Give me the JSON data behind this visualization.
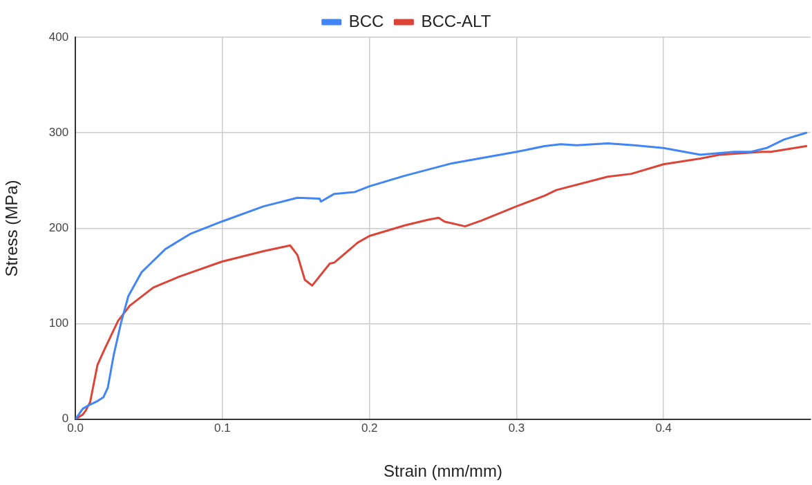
{
  "chart_data": {
    "type": "line",
    "xlabel": "Strain (mm/mm)",
    "ylabel": "Stress (MPa)",
    "xlim": [
      0,
      0.5
    ],
    "ylim": [
      0,
      400
    ],
    "xticks": [
      {
        "value": 0,
        "label": "0.0"
      },
      0.1,
      0.2,
      0.3,
      0.4
    ],
    "yticks": [
      0,
      100,
      200,
      300,
      400
    ],
    "grid": true,
    "legend": "top",
    "marker": "none",
    "line_style": "solid",
    "series": [
      {
        "name": "BCC",
        "color": "#4285f4",
        "x": [
          0,
          0.005,
          0.0095,
          0.015,
          0.019,
          0.022,
          0.026,
          0.031,
          0.036,
          0.045,
          0.061,
          0.078,
          0.0995,
          0.128,
          0.151,
          0.166,
          0.167,
          0.176,
          0.19,
          0.2,
          0.224,
          0.256,
          0.3,
          0.319,
          0.33,
          0.341,
          0.362,
          0.38,
          0.4,
          0.425,
          0.448,
          0.459,
          0.47,
          0.482,
          0.497
        ],
        "values": [
          0,
          11,
          15,
          19,
          23,
          33,
          67,
          101,
          129,
          154,
          178,
          194,
          207,
          223,
          232,
          231,
          228,
          236,
          238,
          244,
          255,
          268,
          280,
          286,
          288,
          287,
          289,
          287,
          284,
          277,
          280,
          280,
          284,
          293,
          300
        ]
      },
      {
        "name": "BCC-ALT",
        "color": "#db4437",
        "x": [
          0,
          0.005,
          0.007,
          0.01,
          0.015,
          0.02,
          0.029,
          0.037,
          0.053,
          0.07,
          0.0995,
          0.128,
          0.146,
          0.151,
          0.156,
          0.161,
          0.173,
          0.176,
          0.192,
          0.2,
          0.224,
          0.24,
          0.247,
          0.251,
          0.265,
          0.276,
          0.3,
          0.319,
          0.327,
          0.362,
          0.378,
          0.4,
          0.425,
          0.438,
          0.467,
          0.473,
          0.497
        ],
        "values": [
          0,
          5,
          9,
          18,
          57,
          74,
          103,
          119,
          138,
          149,
          165,
          176,
          182,
          172,
          146,
          140,
          163,
          164,
          185,
          192,
          203,
          209,
          211,
          207,
          202,
          208,
          223,
          234,
          240,
          254,
          257,
          267,
          273,
          277,
          280,
          280,
          286
        ]
      }
    ]
  }
}
